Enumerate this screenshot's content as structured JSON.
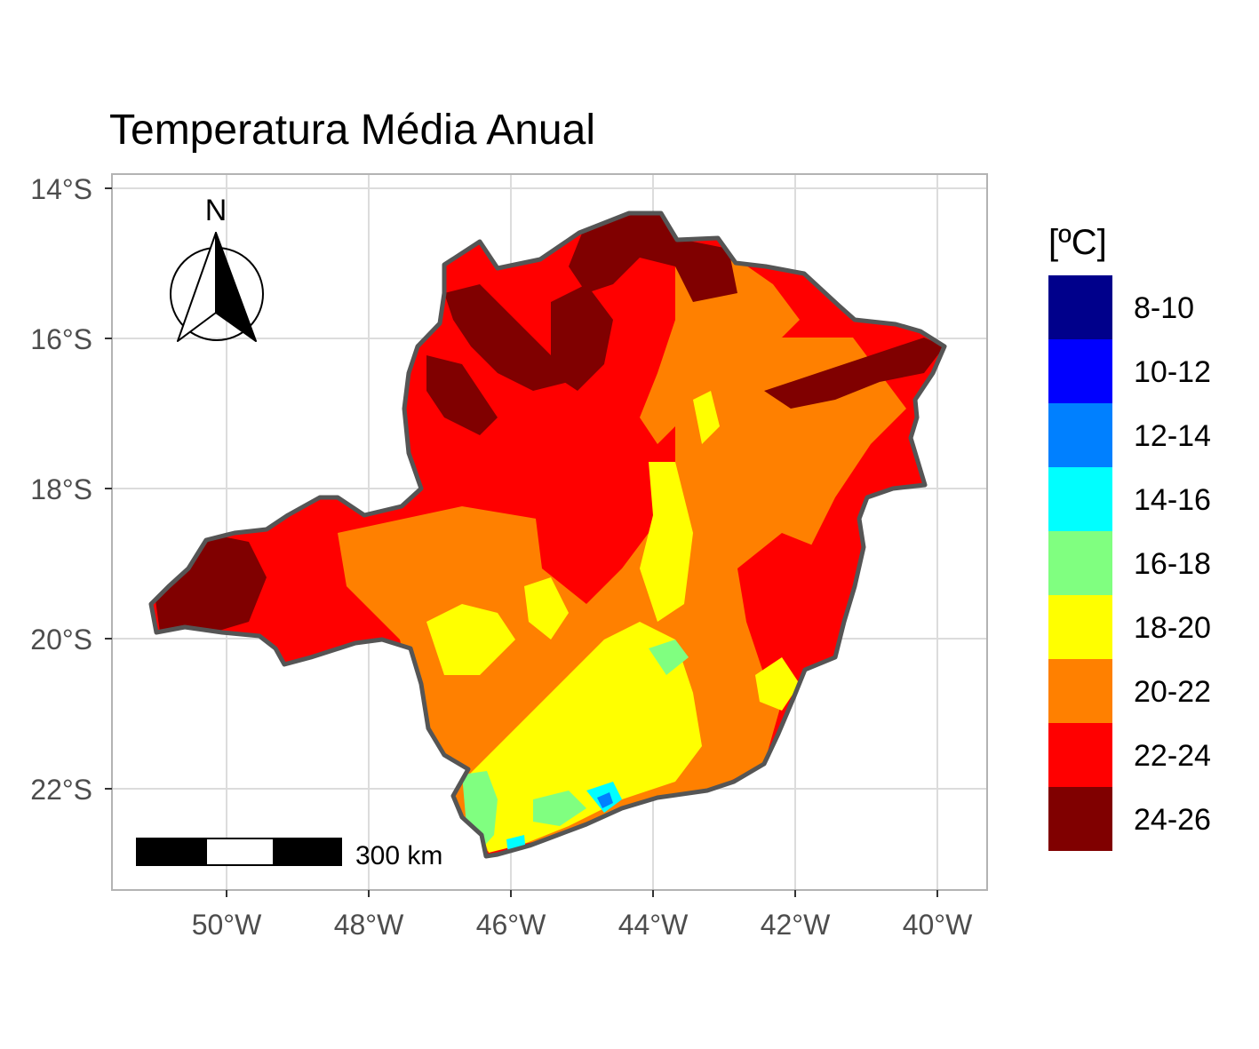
{
  "title": "Temperatura Média Anual",
  "axes": {
    "x_ticks": [
      "50°W",
      "48°W",
      "46°W",
      "44°W",
      "42°W",
      "40°W"
    ],
    "y_ticks": [
      "14°S",
      "16°S",
      "18°S",
      "20°S",
      "22°S"
    ]
  },
  "north_arrow": {
    "label": "N"
  },
  "scale_bar": {
    "label": "300 km"
  },
  "legend": {
    "title": "[ºC]",
    "classes": [
      {
        "label": "8-10",
        "color": "#00008B"
      },
      {
        "label": "10-12",
        "color": "#0000FF"
      },
      {
        "label": "12-14",
        "color": "#0080FF"
      },
      {
        "label": "14-16",
        "color": "#00FFFF"
      },
      {
        "label": "16-18",
        "color": "#80FF80"
      },
      {
        "label": "18-20",
        "color": "#FFFF00"
      },
      {
        "label": "20-22",
        "color": "#FF8000"
      },
      {
        "label": "22-24",
        "color": "#FF0000"
      },
      {
        "label": "24-26",
        "color": "#800000"
      }
    ]
  },
  "colors": {
    "state_border": "#555555",
    "panel_border": "#b3b3b3",
    "grid": "#dcdcdc"
  }
}
